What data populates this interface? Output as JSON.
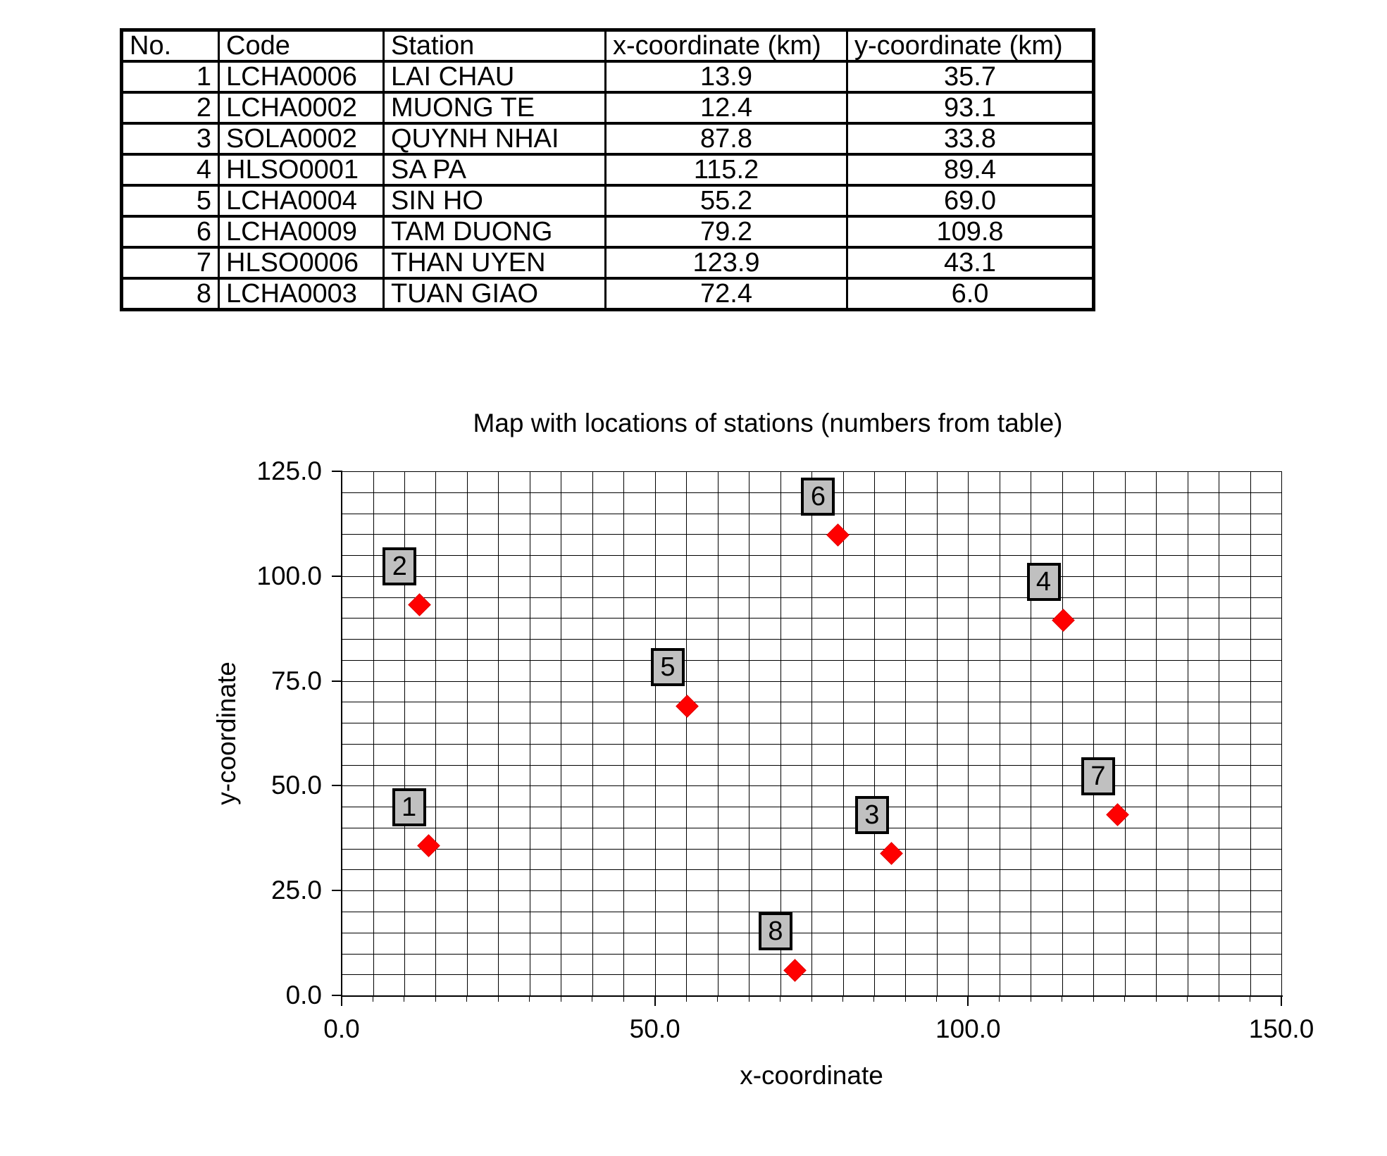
{
  "table": {
    "headers": [
      "No.",
      "Code",
      "Station",
      "x-coordinate (km)",
      "y-coordinate (km)"
    ],
    "rows": [
      [
        "1",
        "LCHA0006",
        "LAI CHAU",
        "13.9",
        "35.7"
      ],
      [
        "2",
        "LCHA0002",
        "MUONG TE",
        "12.4",
        "93.1"
      ],
      [
        "3",
        "SOLA0002",
        "QUYNH NHAI",
        "87.8",
        "33.8"
      ],
      [
        "4",
        "HLSO0001",
        "SA PA",
        "115.2",
        "89.4"
      ],
      [
        "5",
        "LCHA0004",
        "SIN HO",
        "55.2",
        "69.0"
      ],
      [
        "6",
        "LCHA0009",
        "TAM DUONG",
        "79.2",
        "109.8"
      ],
      [
        "7",
        "HLSO0006",
        "THAN UYEN",
        "123.9",
        "43.1"
      ],
      [
        "8",
        "LCHA0003",
        "TUAN GIAO",
        "72.4",
        "6.0"
      ]
    ]
  },
  "chart_data": {
    "type": "scatter",
    "title": "Map with locations of stations (numbers from table)",
    "xlabel": "x-coordinate",
    "ylabel": "y-coordinate",
    "xlim": [
      0,
      150
    ],
    "ylim": [
      0,
      125
    ],
    "grid_step": 5,
    "grid_on": true,
    "legend_position": "none",
    "x_ticks": [
      0,
      50,
      100,
      150
    ],
    "x_tick_labels": [
      "0.0",
      "50.0",
      "100.0",
      "150.0"
    ],
    "y_ticks": [
      0,
      25,
      50,
      75,
      100,
      125
    ],
    "y_tick_labels": [
      "0.0",
      "25.0",
      "50.0",
      "75.0",
      "100.0",
      "125.0"
    ],
    "marker_color": "#ff0000",
    "label_box_fill": "#c0c0c0",
    "label_box_border": "#000000",
    "points": [
      {
        "label": "1",
        "x": 13.9,
        "y": 35.7
      },
      {
        "label": "2",
        "x": 12.4,
        "y": 93.1
      },
      {
        "label": "3",
        "x": 87.8,
        "y": 33.8
      },
      {
        "label": "4",
        "x": 115.2,
        "y": 89.4
      },
      {
        "label": "5",
        "x": 55.2,
        "y": 69.0
      },
      {
        "label": "6",
        "x": 79.2,
        "y": 109.8
      },
      {
        "label": "7",
        "x": 123.9,
        "y": 43.1
      },
      {
        "label": "8",
        "x": 72.4,
        "y": 6.0
      }
    ]
  }
}
